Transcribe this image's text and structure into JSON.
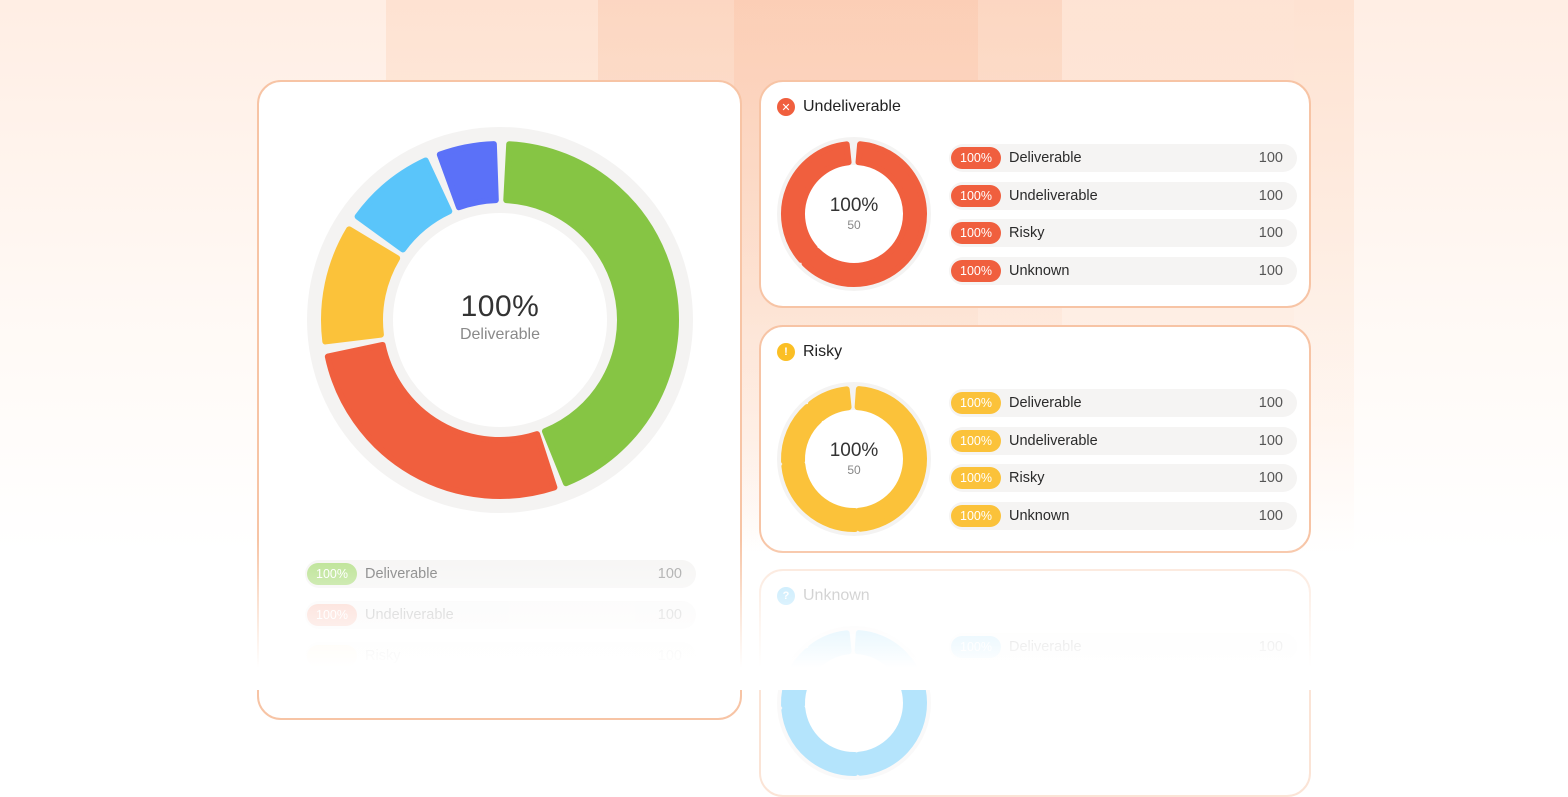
{
  "colors": {
    "deliverable": "#86c544",
    "undeliverable": "#f05f3e",
    "risky": "#fbc23a",
    "unknown": "#5ac5fa",
    "blue": "#5b71f8",
    "card_border": "#f7c4a5"
  },
  "main": {
    "center_value": "100%",
    "center_label": "Deliverable",
    "rows": [
      {
        "pct": "100%",
        "label": "Deliverable",
        "value": "100"
      },
      {
        "pct": "100%",
        "label": "Undeliverable",
        "value": "100"
      },
      {
        "pct": "",
        "label": "Risky",
        "value": "100"
      }
    ]
  },
  "undeliverable": {
    "title": "Undeliverable",
    "icon": "close-icon",
    "center_value": "100%",
    "center_sub": "50",
    "rows": [
      {
        "pct": "100%",
        "label": "Deliverable",
        "value": "100"
      },
      {
        "pct": "100%",
        "label": "Undeliverable",
        "value": "100"
      },
      {
        "pct": "100%",
        "label": "Risky",
        "value": "100"
      },
      {
        "pct": "100%",
        "label": "Unknown",
        "value": "100"
      }
    ]
  },
  "risky": {
    "title": "Risky",
    "icon": "exclamation-icon",
    "center_value": "100%",
    "center_sub": "50",
    "rows": [
      {
        "pct": "100%",
        "label": "Deliverable",
        "value": "100"
      },
      {
        "pct": "100%",
        "label": "Undeliverable",
        "value": "100"
      },
      {
        "pct": "100%",
        "label": "Risky",
        "value": "100"
      },
      {
        "pct": "100%",
        "label": "Unknown",
        "value": "100"
      }
    ]
  },
  "unknown": {
    "title": "Unknown",
    "icon": "question-icon",
    "rows": [
      {
        "pct": "100%",
        "label": "Deliverable",
        "value": "100"
      }
    ]
  }
}
